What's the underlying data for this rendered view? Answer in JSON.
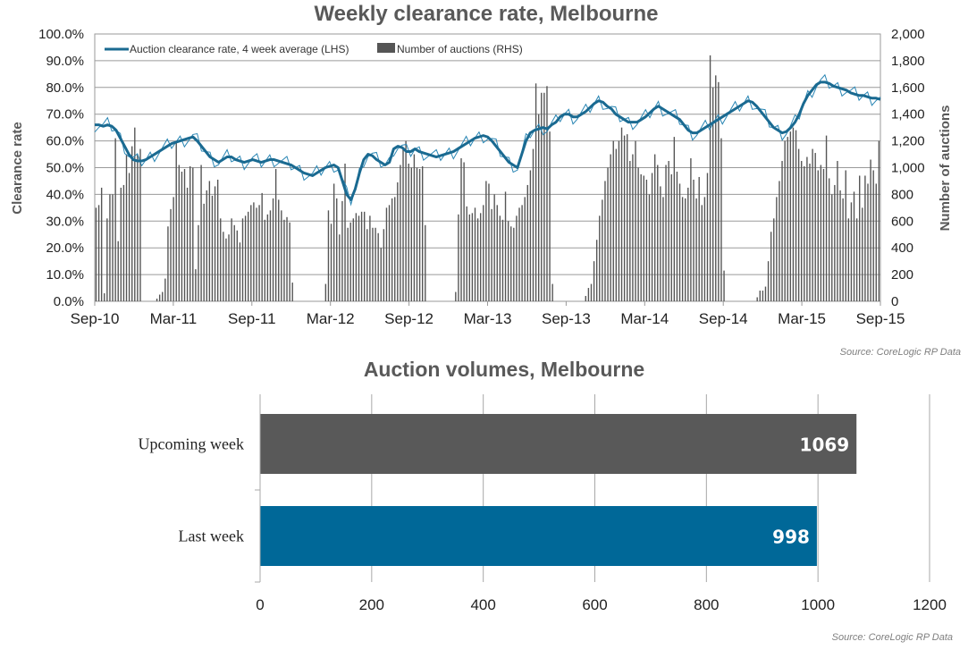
{
  "chart_data": [
    {
      "type": "line+bar",
      "title": "Weekly clearance rate, Melbourne",
      "ylabel": "Clearance rate",
      "y2label": "Number of auctions",
      "ylim": [
        0,
        100
      ],
      "y2lim": [
        0,
        2000
      ],
      "yticks": [
        "0.0%",
        "10.0%",
        "20.0%",
        "30.0%",
        "40.0%",
        "50.0%",
        "60.0%",
        "70.0%",
        "80.0%",
        "90.0%",
        "100.0%"
      ],
      "y2ticks": [
        "0",
        "200",
        "400",
        "600",
        "800",
        "1,000",
        "1,200",
        "1,400",
        "1,600",
        "1,800",
        "2,000"
      ],
      "xticks": [
        "Sep-10",
        "Mar-11",
        "Sep-11",
        "Mar-12",
        "Sep-12",
        "Mar-13",
        "Sep-13",
        "Mar-14",
        "Sep-14",
        "Mar-15",
        "Sep-15"
      ],
      "legend": [
        "Auction clearance rate, 4 week average (LHS)",
        "Number of auctions (RHS)"
      ],
      "legend_position": "top-left",
      "grid": true,
      "colors": {
        "line": "#1a6a91",
        "bars": "#555555"
      },
      "series": [
        {
          "name": "Auction clearance rate, 4 week average (LHS)",
          "type": "line",
          "values": [
            66,
            66,
            65.5,
            66,
            65.5,
            64,
            61,
            58,
            55,
            53,
            52.5,
            52.5,
            53,
            54,
            55,
            56,
            57,
            58,
            59,
            59.5,
            60,
            60.5,
            61,
            61.5,
            60,
            58,
            56,
            54,
            53,
            52,
            53,
            54,
            54,
            53,
            52.5,
            52,
            52.5,
            53,
            52.5,
            52,
            52.5,
            53,
            53,
            52.5,
            52,
            51.5,
            51,
            50,
            49,
            48,
            47.5,
            47,
            48,
            49,
            50,
            50.5,
            51,
            50,
            45,
            40,
            38,
            42,
            48,
            53,
            55,
            54.5,
            53,
            52,
            51,
            52,
            57,
            58,
            57.5,
            56,
            56,
            57,
            56,
            55.5,
            55,
            54.5,
            54,
            54.5,
            55,
            55.5,
            56,
            57,
            58,
            59,
            60,
            61,
            61.5,
            62,
            61.5,
            60,
            58,
            56,
            54,
            52,
            51,
            50,
            55,
            60,
            63,
            64,
            64.5,
            65,
            64.5,
            66,
            67,
            69,
            70,
            70,
            69,
            69,
            70,
            71,
            72.5,
            74,
            75,
            74.5,
            73,
            72,
            70,
            69,
            68,
            67,
            67,
            67,
            68,
            69,
            70.5,
            72,
            73,
            72,
            71,
            70,
            69,
            68,
            66,
            64,
            63,
            63,
            64,
            65,
            66,
            67,
            68,
            69,
            70,
            71,
            72,
            73,
            74,
            75,
            74.5,
            73,
            71,
            69,
            67,
            65,
            64,
            63,
            63.5,
            65,
            67,
            70,
            74,
            77,
            79,
            81,
            82,
            82,
            81.5,
            80.5,
            80,
            79.5,
            79,
            78,
            77.5,
            77,
            77,
            76.5,
            76,
            76,
            75.5
          ]
        },
        {
          "name": "Number of auctions (RHS)",
          "type": "bar",
          "values": [
            700,
            720,
            850,
            60,
            620,
            800,
            800,
            1220,
            450,
            850,
            870,
            1100,
            960,
            1160,
            1300,
            1100,
            1140,
            0,
            0,
            0,
            0,
            0,
            20,
            50,
            70,
            170,
            560,
            690,
            780,
            1200,
            1020,
            970,
            990,
            850,
            1010,
            1000,
            240,
            570,
            1020,
            730,
            830,
            900,
            790,
            860,
            910,
            620,
            520,
            470,
            500,
            620,
            570,
            530,
            440,
            620,
            640,
            670,
            720,
            740,
            700,
            720,
            810,
            610,
            650,
            680,
            770,
            990,
            760,
            680,
            610,
            630,
            590,
            140,
            0,
            0,
            0,
            0,
            0,
            0,
            0,
            0,
            0,
            0,
            0,
            130,
            680,
            580,
            880,
            770,
            500,
            750,
            1030,
            550,
            590,
            620,
            660,
            640,
            670,
            670,
            540,
            640,
            550,
            550,
            510,
            400,
            540,
            700,
            720,
            770,
            780,
            890,
            1020,
            1150,
            1200,
            1030,
            1000,
            1100,
            1000,
            990,
            1010,
            570,
            0,
            0,
            0,
            0,
            0,
            0,
            0,
            0,
            0,
            0,
            70,
            650,
            1070,
            1040,
            710,
            650,
            660,
            700,
            620,
            660,
            720,
            900,
            880,
            690,
            800,
            720,
            640,
            610,
            820,
            600,
            560,
            550,
            640,
            700,
            720,
            780,
            870,
            980,
            1140,
            1630,
            1400,
            1560,
            1560,
            1610,
            1270,
            130,
            0,
            0,
            0,
            0,
            0,
            0,
            0,
            0,
            0,
            0,
            0,
            40,
            100,
            130,
            300,
            460,
            640,
            760,
            900,
            1000,
            1100,
            1200,
            1140,
            1200,
            1300,
            1240,
            1250,
            1050,
            1100,
            1200,
            1000,
            950,
            940,
            910,
            800,
            960,
            1100,
            1020,
            860,
            780,
            1020,
            1050,
            950,
            1230,
            970,
            880,
            780,
            770,
            850,
            1070,
            910,
            770,
            930,
            720,
            780,
            960,
            1840,
            1600,
            1690,
            1640,
            1220,
            230,
            0,
            0,
            0,
            0,
            0,
            0,
            0,
            0,
            0,
            0,
            0,
            30,
            80,
            80,
            110,
            300,
            520,
            620,
            780,
            900,
            1050,
            1200,
            1230,
            1270,
            1300,
            1280,
            1140,
            1050,
            1010,
            1080,
            1030,
            1140,
            1110,
            980,
            1020,
            990,
            1240,
            920,
            800,
            870,
            1050,
            830,
            770,
            980,
            620,
            740,
            820,
            620,
            940,
            700,
            940,
            880,
            1060,
            980,
            880,
            1200
          ]
        }
      ],
      "source": "Source: CoreLogic  RP Data"
    },
    {
      "type": "bar",
      "orientation": "horizontal",
      "title": "Auction volumes, Melbourne",
      "categories": [
        "Upcoming week",
        "Last week"
      ],
      "values": [
        1069,
        998
      ],
      "colors": [
        "#595959",
        "#006898"
      ],
      "xlim": [
        0,
        1200
      ],
      "xticks": [
        "0",
        "200",
        "400",
        "600",
        "800",
        "1000",
        "1200"
      ],
      "grid": true,
      "source": "Source: CoreLogic  RP Data"
    }
  ]
}
